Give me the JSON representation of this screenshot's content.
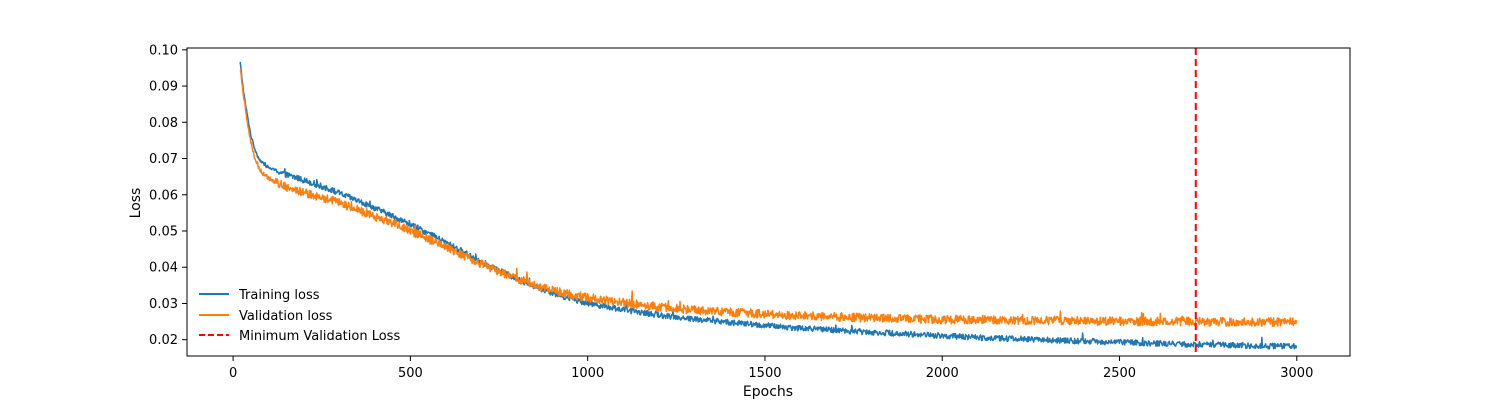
{
  "chart_data": {
    "type": "line",
    "title": "",
    "xlabel": "Epochs",
    "ylabel": "Loss",
    "xlim": [
      -130,
      3150
    ],
    "ylim": [
      0.0155,
      0.1005
    ],
    "xticks": [
      0,
      500,
      1000,
      1500,
      2000,
      2500,
      3000
    ],
    "yticks": [
      0.02,
      0.03,
      0.04,
      0.05,
      0.06,
      0.07,
      0.08,
      0.09,
      0.1
    ],
    "ytick_labels": [
      "0.02",
      "0.03",
      "0.04",
      "0.05",
      "0.06",
      "0.07",
      "0.08",
      "0.09",
      "0.10"
    ],
    "grid": false,
    "legend_position": "lower-left",
    "legend_frame": false,
    "series": [
      {
        "name": "Training loss",
        "color": "#1f77b4",
        "x": [
          20,
          30,
          40,
          50,
          60,
          70,
          80,
          100,
          125,
          150,
          175,
          200,
          225,
          250,
          275,
          300,
          325,
          350,
          375,
          400,
          450,
          500,
          550,
          600,
          650,
          700,
          750,
          800,
          850,
          900,
          950,
          1000,
          1100,
          1200,
          1300,
          1400,
          1500,
          1600,
          1700,
          1800,
          1900,
          2000,
          2100,
          2200,
          2300,
          2400,
          2500,
          2600,
          2700,
          2800,
          2900,
          3000
        ],
        "y": [
          0.0965,
          0.088,
          0.082,
          0.0765,
          0.073,
          0.0705,
          0.069,
          0.0675,
          0.0665,
          0.0655,
          0.0648,
          0.064,
          0.0632,
          0.0623,
          0.0614,
          0.0604,
          0.0594,
          0.0584,
          0.0573,
          0.0563,
          0.0541,
          0.0518,
          0.0494,
          0.0468,
          0.0442,
          0.0416,
          0.0391,
          0.0368,
          0.0347,
          0.0329,
          0.0314,
          0.0301,
          0.0283,
          0.0268,
          0.0257,
          0.0248,
          0.0239,
          0.0232,
          0.0226,
          0.0221,
          0.0216,
          0.0211,
          0.0206,
          0.0203,
          0.0199,
          0.0196,
          0.0193,
          0.019,
          0.0187,
          0.0185,
          0.0183,
          0.0181
        ],
        "noise": 0.0008
      },
      {
        "name": "Validation loss",
        "color": "#ff7f0e",
        "x": [
          20,
          30,
          40,
          50,
          60,
          70,
          80,
          100,
          125,
          150,
          175,
          200,
          225,
          250,
          275,
          300,
          325,
          350,
          375,
          400,
          450,
          500,
          550,
          600,
          650,
          700,
          750,
          800,
          850,
          900,
          950,
          1000,
          1100,
          1200,
          1300,
          1400,
          1500,
          1600,
          1700,
          1800,
          1900,
          2000,
          2100,
          2200,
          2300,
          2400,
          2500,
          2600,
          2700,
          2800,
          2900,
          3000
        ],
        "y": [
          0.095,
          0.087,
          0.0805,
          0.0745,
          0.0705,
          0.068,
          0.0662,
          0.0645,
          0.0632,
          0.0622,
          0.0614,
          0.0607,
          0.06,
          0.0592,
          0.0585,
          0.0577,
          0.0568,
          0.0559,
          0.055,
          0.054,
          0.052,
          0.05,
          0.0478,
          0.0455,
          0.0432,
          0.0409,
          0.0388,
          0.0369,
          0.0352,
          0.0337,
          0.0325,
          0.0316,
          0.0302,
          0.0291,
          0.0282,
          0.0276,
          0.0271,
          0.0266,
          0.0263,
          0.026,
          0.0258,
          0.0256,
          0.0255,
          0.0254,
          0.0253,
          0.0252,
          0.0251,
          0.025,
          0.025,
          0.0249,
          0.0249,
          0.0249
        ],
        "noise": 0.0012
      }
    ],
    "vline": {
      "name": "Minimum Validation Loss",
      "x": 2715,
      "color": "#ff0000",
      "style": "dashed"
    }
  }
}
